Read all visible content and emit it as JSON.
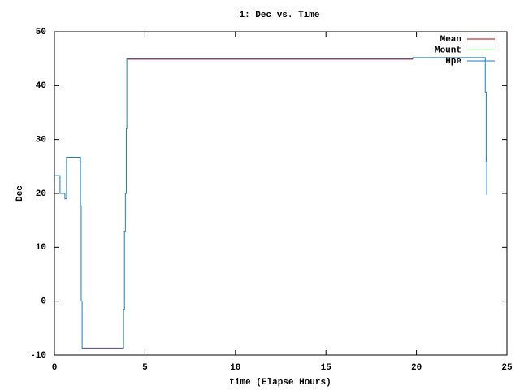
{
  "chart_data": {
    "type": "line",
    "title": "1: Dec vs. Time",
    "x_label": "time (Elapse Hours)",
    "y_label": "Dec",
    "x": [
      0,
      0.31,
      0.31,
      0.58,
      0.58,
      0.67,
      0.67,
      1.44,
      1.44,
      1.48,
      1.48,
      1.53,
      1.53,
      3.82,
      3.82,
      3.87,
      3.87,
      3.92,
      3.92,
      3.97,
      3.97,
      4.0,
      4.0,
      19.8,
      19.8,
      23.8,
      23.8,
      23.85,
      23.85,
      23.88,
      23.88,
      23.9
    ],
    "series": [
      {
        "name": "Mean",
        "color": "#cc0000",
        "values": [
          null,
          null,
          null,
          null,
          null,
          null,
          null,
          null,
          null,
          null,
          null,
          null,
          -8.8,
          -8.8,
          null,
          null,
          null,
          null,
          null,
          null,
          null,
          null,
          44.9,
          44.9,
          null,
          null,
          null,
          null,
          null,
          null,
          null,
          null
        ]
      },
      {
        "name": "Mount",
        "color": "#00a000",
        "values": [
          null,
          null,
          null,
          null,
          null,
          null,
          null,
          null,
          null,
          null,
          null,
          null,
          null,
          null,
          null,
          null,
          null,
          null,
          null,
          null,
          null,
          null,
          null,
          null,
          null,
          null,
          null,
          null,
          null,
          null,
          null,
          null
        ]
      },
      {
        "name": "Hpe",
        "color": "#1a7fc0",
        "values": [
          23.3,
          23.3,
          20,
          20,
          19,
          19,
          26.7,
          26.7,
          17.7,
          17.7,
          0,
          0,
          -8.7,
          -8.7,
          -1.5,
          -1.5,
          13,
          13,
          20,
          20,
          32,
          32,
          45,
          45,
          45.2,
          45.2,
          38.8,
          38.8,
          26,
          26,
          19.8,
          19.8
        ]
      }
    ],
    "xlim": [
      0,
      25
    ],
    "xticks": [
      0,
      5,
      10,
      15,
      20,
      25
    ],
    "ylim": [
      -10,
      50
    ],
    "yticks": [
      -10,
      0,
      10,
      20,
      30,
      40,
      50
    ],
    "legend": "top-right"
  }
}
